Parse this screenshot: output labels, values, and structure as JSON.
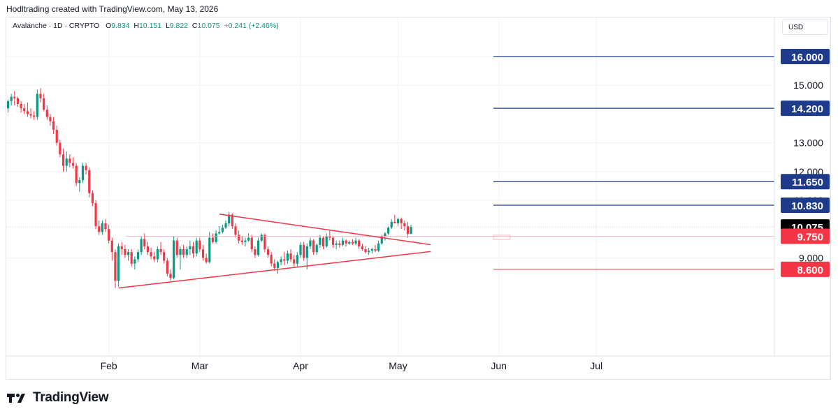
{
  "header": {
    "credit": "Hodltrading created with TradingView.com, May 13, 2026"
  },
  "legend": {
    "symbol": "Avalanche · 1D · CRYPTO",
    "o_label": "O",
    "o_value": "9.834",
    "h_label": "H",
    "h_value": "10.151",
    "l_label": "L",
    "l_value": "9.822",
    "c_label": "C",
    "c_value": "10.075",
    "change": "+0.241 (+2.46%)"
  },
  "currency_button": "USD",
  "brand": {
    "name": "TradingView",
    "logo_icon": "tradingview-logo-icon"
  },
  "colors": {
    "up": "#089981",
    "down": "#f23645",
    "resistance": "#1e3a8a",
    "support": "#f23645",
    "trendline": "#f23645",
    "grid": "#f0f3fa"
  },
  "chart_data": {
    "type": "candlestick",
    "symbol": "Avalanche",
    "interval": "1D",
    "ylim": [
      7.5,
      16.6
    ],
    "y_ticks": [
      {
        "value": 16.0,
        "label": ""
      },
      {
        "value": 15.0,
        "label": "15.000"
      },
      {
        "value": 13.0,
        "label": "13.000"
      },
      {
        "value": 12.0,
        "label": "12.000"
      },
      {
        "value": 11.0,
        "label": "11.000"
      },
      {
        "value": 9.0,
        "label": "9.000"
      }
    ],
    "x_ticks": [
      {
        "day": 31,
        "label": "Feb"
      },
      {
        "day": 59,
        "label": "Mar"
      },
      {
        "day": 90,
        "label": "Apr"
      },
      {
        "day": 120,
        "label": "May"
      },
      {
        "day": 151,
        "label": "Jun"
      },
      {
        "day": 181,
        "label": "Jul"
      }
    ],
    "grid": true,
    "horizontal_levels": [
      {
        "value": 16.0,
        "label": "16.000",
        "kind": "resistance"
      },
      {
        "value": 14.2,
        "label": "14.200",
        "kind": "resistance"
      },
      {
        "value": 11.65,
        "label": "11.650",
        "kind": "resistance"
      },
      {
        "value": 10.83,
        "label": "10.830",
        "kind": "resistance"
      },
      {
        "value": 10.075,
        "label": "10.075",
        "kind": "last"
      },
      {
        "value": 9.75,
        "label": "9.750",
        "kind": "support"
      },
      {
        "value": 8.6,
        "label": "8.600",
        "kind": "support"
      }
    ],
    "trendlines": [
      {
        "from": [
          65,
          10.52
        ],
        "to": [
          130,
          9.46
        ]
      },
      {
        "from": [
          34,
          7.95
        ],
        "to": [
          130,
          9.22
        ]
      }
    ],
    "candles": [
      [
        0,
        14.2,
        14.5,
        14.05,
        14.45
      ],
      [
        1,
        14.45,
        14.7,
        14.3,
        14.6
      ],
      [
        2,
        14.6,
        14.8,
        14.3,
        14.55
      ],
      [
        3,
        14.55,
        14.6,
        14.25,
        14.35
      ],
      [
        4,
        14.35,
        14.45,
        14.05,
        14.2
      ],
      [
        5,
        14.2,
        14.35,
        14.0,
        14.1
      ],
      [
        6,
        14.1,
        14.4,
        13.9,
        14.0
      ],
      [
        7,
        14.0,
        14.2,
        13.85,
        13.95
      ],
      [
        8,
        13.95,
        14.1,
        13.8,
        13.9
      ],
      [
        9,
        13.9,
        14.85,
        13.8,
        14.7
      ],
      [
        10,
        14.7,
        14.9,
        14.4,
        14.55
      ],
      [
        11,
        14.55,
        14.7,
        14.1,
        14.15
      ],
      [
        12,
        14.15,
        14.3,
        13.8,
        13.9
      ],
      [
        13,
        13.9,
        14.0,
        13.6,
        13.75
      ],
      [
        14,
        13.75,
        13.9,
        13.3,
        13.45
      ],
      [
        15,
        13.45,
        13.6,
        12.9,
        13.0
      ],
      [
        16,
        13.0,
        13.1,
        12.5,
        12.6
      ],
      [
        17,
        12.6,
        12.8,
        12.0,
        12.2
      ],
      [
        18,
        12.2,
        12.7,
        12.0,
        12.45
      ],
      [
        19,
        12.45,
        12.6,
        12.15,
        12.3
      ],
      [
        20,
        12.3,
        12.5,
        12.1,
        12.2
      ],
      [
        21,
        12.2,
        12.3,
        11.5,
        11.6
      ],
      [
        22,
        11.6,
        11.8,
        11.3,
        11.7
      ],
      [
        23,
        11.7,
        12.3,
        11.6,
        12.2
      ],
      [
        24,
        12.2,
        12.3,
        11.9,
        12.05
      ],
      [
        25,
        12.05,
        12.15,
        11.1,
        11.25
      ],
      [
        26,
        11.25,
        11.35,
        10.8,
        10.9
      ],
      [
        27,
        10.9,
        11.0,
        10.0,
        10.1
      ],
      [
        28,
        10.1,
        10.3,
        9.8,
        9.9
      ],
      [
        29,
        9.9,
        10.3,
        9.8,
        10.2
      ],
      [
        30,
        10.2,
        10.35,
        9.9,
        10.0
      ],
      [
        31,
        10.0,
        10.15,
        9.5,
        9.6
      ],
      [
        32,
        9.6,
        9.7,
        8.9,
        9.2
      ],
      [
        33,
        9.2,
        9.3,
        7.95,
        8.2
      ],
      [
        34,
        8.2,
        9.5,
        8.0,
        9.4
      ],
      [
        35,
        9.4,
        9.55,
        9.1,
        9.3
      ],
      [
        36,
        9.3,
        9.45,
        9.0,
        9.1
      ],
      [
        37,
        9.1,
        9.3,
        8.9,
        9.2
      ],
      [
        38,
        9.2,
        9.3,
        8.7,
        8.8
      ],
      [
        39,
        8.8,
        9.05,
        8.6,
        8.95
      ],
      [
        40,
        8.95,
        9.3,
        8.85,
        9.2
      ],
      [
        41,
        9.2,
        9.75,
        9.1,
        9.65
      ],
      [
        42,
        9.65,
        9.85,
        9.3,
        9.4
      ],
      [
        43,
        9.4,
        9.55,
        9.1,
        9.2
      ],
      [
        44,
        9.2,
        9.35,
        8.95,
        9.05
      ],
      [
        45,
        9.05,
        9.2,
        8.85,
        8.95
      ],
      [
        46,
        8.95,
        9.4,
        8.85,
        9.3
      ],
      [
        47,
        9.3,
        9.55,
        9.1,
        9.2
      ],
      [
        48,
        9.2,
        9.3,
        8.8,
        8.9
      ],
      [
        49,
        8.9,
        9.0,
        8.35,
        8.45
      ],
      [
        50,
        8.45,
        8.6,
        8.2,
        8.3
      ],
      [
        51,
        8.3,
        9.75,
        8.25,
        9.6
      ],
      [
        52,
        9.6,
        9.7,
        9.0,
        9.1
      ],
      [
        53,
        9.1,
        9.4,
        8.6,
        9.3
      ],
      [
        54,
        9.3,
        9.45,
        9.0,
        9.1
      ],
      [
        55,
        9.1,
        9.4,
        9.0,
        9.3
      ],
      [
        56,
        9.3,
        9.6,
        9.1,
        9.4
      ],
      [
        57,
        9.4,
        9.55,
        9.0,
        9.15
      ],
      [
        58,
        9.15,
        9.7,
        9.05,
        9.6
      ],
      [
        59,
        9.6,
        9.7,
        9.2,
        9.3
      ],
      [
        60,
        9.3,
        9.45,
        8.9,
        9.0
      ],
      [
        61,
        9.0,
        9.15,
        8.8,
        8.85
      ],
      [
        62,
        8.85,
        9.9,
        8.8,
        9.7
      ],
      [
        63,
        9.7,
        9.85,
        9.5,
        9.55
      ],
      [
        64,
        9.55,
        9.95,
        9.5,
        9.85
      ],
      [
        65,
        9.85,
        10.1,
        9.8,
        9.9
      ],
      [
        66,
        9.9,
        10.15,
        9.85,
        10.05
      ],
      [
        67,
        10.05,
        10.3,
        10.0,
        10.2
      ],
      [
        68,
        10.2,
        10.6,
        10.1,
        10.5
      ],
      [
        69,
        10.5,
        10.55,
        10.0,
        10.1
      ],
      [
        70,
        10.1,
        10.2,
        9.7,
        9.8
      ],
      [
        71,
        9.8,
        9.95,
        9.5,
        9.6
      ],
      [
        72,
        9.6,
        9.75,
        9.45,
        9.55
      ],
      [
        73,
        9.55,
        9.7,
        9.4,
        9.6
      ],
      [
        74,
        9.6,
        9.85,
        9.55,
        9.7
      ],
      [
        75,
        9.7,
        9.8,
        9.2,
        9.3
      ],
      [
        76,
        9.3,
        9.4,
        9.0,
        9.1
      ],
      [
        77,
        9.1,
        9.7,
        9.05,
        9.6
      ],
      [
        78,
        9.6,
        9.85,
        9.55,
        9.8
      ],
      [
        79,
        9.8,
        9.85,
        9.2,
        9.3
      ],
      [
        80,
        9.3,
        9.4,
        9.0,
        9.1
      ],
      [
        81,
        9.1,
        9.2,
        8.7,
        8.8
      ],
      [
        82,
        8.8,
        8.95,
        8.55,
        8.65
      ],
      [
        83,
        8.65,
        8.9,
        8.45,
        8.85
      ],
      [
        84,
        8.85,
        9.05,
        8.75,
        8.95
      ],
      [
        85,
        8.95,
        9.2,
        8.75,
        8.9
      ],
      [
        86,
        8.9,
        9.25,
        8.8,
        9.15
      ],
      [
        87,
        9.15,
        9.3,
        8.85,
        8.95
      ],
      [
        88,
        8.95,
        9.1,
        8.7,
        8.8
      ],
      [
        89,
        8.8,
        9.2,
        8.7,
        9.1
      ],
      [
        90,
        9.1,
        9.55,
        9.0,
        9.45
      ],
      [
        91,
        9.45,
        9.55,
        8.9,
        9.0
      ],
      [
        92,
        9.0,
        9.5,
        8.6,
        9.4
      ],
      [
        93,
        9.4,
        9.7,
        9.3,
        9.6
      ],
      [
        94,
        9.6,
        9.65,
        9.1,
        9.2
      ],
      [
        95,
        9.2,
        9.5,
        9.1,
        9.45
      ],
      [
        96,
        9.45,
        9.8,
        9.35,
        9.7
      ],
      [
        97,
        9.7,
        9.75,
        9.3,
        9.4
      ],
      [
        98,
        9.4,
        9.85,
        9.35,
        9.75
      ],
      [
        99,
        9.75,
        9.95,
        9.6,
        9.7
      ],
      [
        100,
        9.7,
        9.75,
        9.35,
        9.45
      ],
      [
        101,
        9.45,
        9.6,
        9.3,
        9.5
      ],
      [
        102,
        9.5,
        9.6,
        9.35,
        9.45
      ],
      [
        103,
        9.45,
        9.7,
        9.4,
        9.6
      ],
      [
        104,
        9.6,
        9.65,
        9.4,
        9.5
      ],
      [
        105,
        9.5,
        9.6,
        9.45,
        9.55
      ],
      [
        106,
        9.55,
        9.65,
        9.45,
        9.5
      ],
      [
        107,
        9.5,
        9.7,
        9.45,
        9.6
      ],
      [
        108,
        9.6,
        9.65,
        9.3,
        9.4
      ],
      [
        109,
        9.4,
        9.5,
        9.25,
        9.3
      ],
      [
        110,
        9.3,
        9.4,
        9.15,
        9.2
      ],
      [
        111,
        9.2,
        9.35,
        9.1,
        9.25
      ],
      [
        112,
        9.25,
        9.35,
        9.15,
        9.3
      ],
      [
        113,
        9.3,
        9.45,
        9.2,
        9.25
      ],
      [
        114,
        9.25,
        9.6,
        9.2,
        9.5
      ],
      [
        115,
        9.5,
        9.8,
        9.45,
        9.75
      ],
      [
        116,
        9.75,
        9.9,
        9.6,
        9.85
      ],
      [
        117,
        9.85,
        10.1,
        9.8,
        10.05
      ],
      [
        118,
        10.05,
        10.35,
        10.0,
        10.25
      ],
      [
        119,
        10.25,
        10.5,
        10.2,
        10.2
      ],
      [
        120,
        10.2,
        10.4,
        10.1,
        10.35
      ],
      [
        121,
        10.35,
        10.4,
        10.0,
        10.2
      ],
      [
        122,
        10.2,
        10.3,
        9.95,
        10.1
      ],
      [
        123,
        10.1,
        10.25,
        9.7,
        9.834
      ],
      [
        124,
        9.834,
        10.151,
        9.822,
        10.075
      ]
    ]
  }
}
